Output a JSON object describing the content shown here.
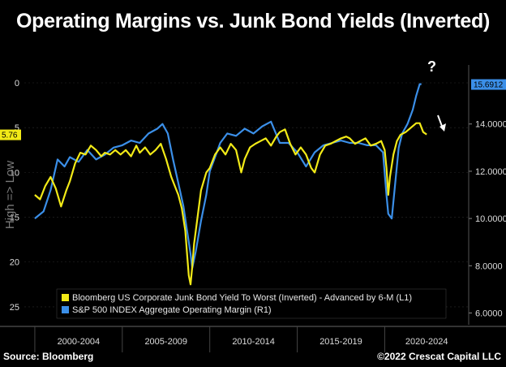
{
  "title": "Operating Margins vs. Junk Bond Yields (Inverted)",
  "source": "Source: Bloomberg",
  "copyright": "©2022 Crescat Capital LLC",
  "colors": {
    "yield": "#f2ea17",
    "margin": "#3b8fe8",
    "background": "#000000"
  },
  "chart_data": {
    "type": "line",
    "left_axis": {
      "ticks": [
        "0",
        "5",
        "10",
        "15",
        "20",
        "25"
      ],
      "range": [
        0,
        27
      ],
      "inverted": true,
      "label": "High => Low"
    },
    "right_axis": {
      "ticks": [
        "14.0000",
        "12.0000",
        "10.0000",
        "8.0000",
        "6.0000"
      ],
      "range": [
        5.5,
        16.5
      ]
    },
    "x_categories": [
      "2000-2004",
      "2005-2009",
      "2010-2014",
      "2015-2019",
      "2020-2024"
    ],
    "last_value_labels": {
      "yield": "5.76",
      "margin": "15.6912"
    },
    "annotations": [
      "?"
    ],
    "legend": [
      {
        "label": "Bloomberg US Corporate Junk Bond Yield To Worst (Inverted) - Advanced by 6-M (L1)",
        "color": "#f2ea17"
      },
      {
        "label": "S&P 500 INDEX Aggregate Operating Margin (R1)",
        "color": "#3b8fe8"
      }
    ],
    "series": [
      {
        "axis": "left",
        "x": [
          2000.0,
          2000.3,
          2000.6,
          2000.9,
          2001.2,
          2001.5,
          2001.8,
          2002.0,
          2002.3,
          2002.6,
          2002.9,
          2003.2,
          2003.5,
          2003.8,
          2004.0,
          2004.3,
          2004.6,
          2004.9,
          2005.2,
          2005.5,
          2005.8,
          2006.0,
          2006.3,
          2006.6,
          2006.9,
          2007.2,
          2007.5,
          2007.8,
          2008.0,
          2008.2,
          2008.4,
          2008.6,
          2008.7,
          2008.8,
          2008.9,
          2009.0,
          2009.1,
          2009.3,
          2009.5,
          2009.8,
          2010.0,
          2010.3,
          2010.6,
          2010.9,
          2011.2,
          2011.5,
          2011.8,
          2012.0,
          2012.3,
          2012.6,
          2012.9,
          2013.2,
          2013.5,
          2013.8,
          2014.0,
          2014.3,
          2014.6,
          2014.9,
          2015.2,
          2015.5,
          2015.8,
          2016.0,
          2016.3,
          2016.6,
          2016.9,
          2017.2,
          2017.5,
          2017.8,
          2018.0,
          2018.3,
          2018.6,
          2018.9,
          2019.2,
          2019.5,
          2019.8,
          2020.0,
          2020.1,
          2020.2,
          2020.3,
          2020.5,
          2020.7,
          2020.9,
          2021.2,
          2021.5,
          2021.8,
          2022.0,
          2022.2,
          2022.4
        ],
        "values": [
          12.5,
          13.0,
          11.5,
          10.5,
          11.8,
          13.8,
          12.0,
          11.0,
          9.0,
          7.8,
          8.0,
          7.0,
          7.5,
          8.2,
          7.8,
          8.0,
          7.5,
          8.0,
          7.5,
          8.2,
          7.0,
          7.8,
          7.2,
          8.0,
          7.5,
          6.8,
          8.5,
          10.5,
          11.5,
          12.5,
          14.0,
          16.5,
          19.0,
          21.5,
          22.5,
          20.5,
          18.0,
          15.0,
          12.0,
          10.0,
          9.5,
          8.0,
          7.2,
          8.0,
          6.8,
          7.5,
          10.0,
          8.5,
          7.2,
          6.8,
          6.5,
          6.2,
          7.0,
          6.0,
          5.5,
          5.2,
          6.8,
          8.0,
          7.2,
          8.0,
          9.5,
          10.0,
          8.0,
          7.0,
          6.8,
          6.5,
          6.2,
          6.0,
          6.2,
          6.8,
          6.5,
          6.2,
          7.0,
          6.8,
          6.5,
          7.5,
          9.5,
          12.5,
          10.5,
          8.0,
          6.5,
          5.8,
          5.5,
          5.0,
          4.5,
          4.5,
          5.5,
          5.76
        ]
      },
      {
        "axis": "right",
        "x": [
          2000.0,
          2000.5,
          2000.9,
          2001.3,
          2001.7,
          2002.0,
          2002.5,
          2003.0,
          2003.5,
          2004.0,
          2004.5,
          2005.0,
          2005.5,
          2006.0,
          2006.5,
          2007.0,
          2007.3,
          2007.6,
          2007.9,
          2008.2,
          2008.5,
          2008.7,
          2008.9,
          2009.0,
          2009.2,
          2009.5,
          2009.8,
          2010.0,
          2010.3,
          2010.6,
          2011.0,
          2011.5,
          2012.0,
          2012.5,
          2013.0,
          2013.5,
          2014.0,
          2014.5,
          2015.0,
          2015.5,
          2016.0,
          2016.5,
          2017.0,
          2017.5,
          2018.0,
          2018.5,
          2019.0,
          2019.5,
          2019.9,
          2020.1,
          2020.2,
          2020.4,
          2020.6,
          2020.8,
          2021.0,
          2021.3,
          2021.6,
          2021.8,
          2022.0,
          2022.1
        ],
        "values": [
          10.0,
          10.3,
          11.2,
          12.5,
          12.2,
          12.6,
          12.4,
          12.9,
          12.5,
          12.7,
          13.0,
          13.1,
          13.3,
          13.2,
          13.6,
          13.8,
          14.0,
          13.6,
          12.5,
          11.5,
          10.5,
          9.5,
          8.5,
          7.9,
          8.6,
          9.9,
          11.0,
          12.0,
          12.6,
          13.2,
          13.6,
          13.5,
          13.8,
          13.6,
          13.9,
          14.1,
          13.2,
          13.2,
          12.8,
          12.2,
          12.8,
          13.1,
          13.2,
          13.3,
          13.2,
          13.2,
          13.1,
          13.1,
          12.8,
          11.0,
          10.2,
          10.0,
          11.5,
          13.0,
          13.6,
          14.0,
          14.6,
          15.2,
          15.69,
          15.69
        ]
      }
    ]
  }
}
